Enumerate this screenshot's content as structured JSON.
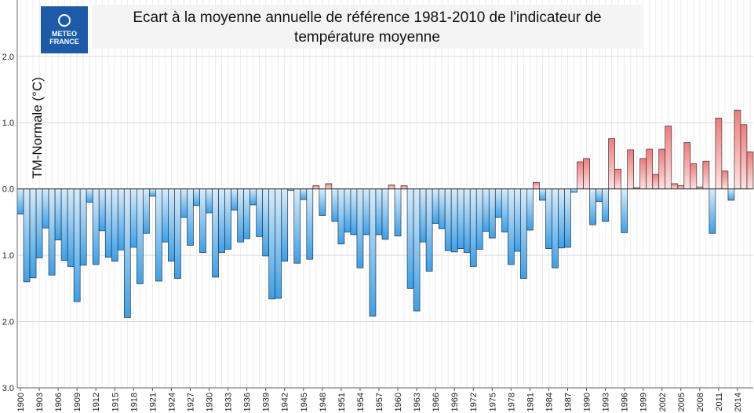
{
  "chart_data": {
    "type": "bar",
    "title_lines": [
      "Ecart à la moyenne annuelle de référence 1981-2010 de l'indicateur de",
      "température moyenne"
    ],
    "logo": [
      "METEO",
      "FRANCE"
    ],
    "ylabel": "TM-Normale (°C)",
    "x": [
      1900,
      1901,
      1902,
      1903,
      1904,
      1905,
      1906,
      1907,
      1908,
      1909,
      1910,
      1911,
      1912,
      1913,
      1914,
      1915,
      1916,
      1917,
      1918,
      1919,
      1920,
      1921,
      1922,
      1923,
      1924,
      1925,
      1926,
      1927,
      1928,
      1929,
      1930,
      1931,
      1932,
      1933,
      1934,
      1935,
      1936,
      1937,
      1938,
      1939,
      1940,
      1941,
      1942,
      1943,
      1944,
      1945,
      1946,
      1947,
      1948,
      1949,
      1950,
      1951,
      1952,
      1953,
      1954,
      1955,
      1956,
      1957,
      1958,
      1959,
      1960,
      1961,
      1962,
      1963,
      1964,
      1965,
      1966,
      1967,
      1968,
      1969,
      1970,
      1971,
      1972,
      1973,
      1974,
      1975,
      1976,
      1977,
      1978,
      1979,
      1980,
      1981,
      1982,
      1983,
      1984,
      1985,
      1986,
      1987,
      1988,
      1989,
      1990,
      1991,
      1992,
      1993,
      1994,
      1995,
      1996,
      1997,
      1998,
      1999,
      2000,
      2001,
      2002,
      2003,
      2004,
      2005,
      2006,
      2007,
      2008,
      2009,
      2010,
      2011,
      2012,
      2013,
      2014,
      2015,
      2016
    ],
    "values": [
      -0.38,
      -1.4,
      -1.34,
      -1.04,
      -0.59,
      -1.3,
      -0.77,
      -1.08,
      -1.17,
      -1.7,
      -1.15,
      -0.2,
      -1.14,
      -0.63,
      -1.03,
      -1.09,
      -0.92,
      -1.94,
      -0.88,
      -1.43,
      -0.67,
      -0.11,
      -1.39,
      -0.8,
      -1.09,
      -1.35,
      -0.43,
      -0.85,
      -0.25,
      -0.96,
      -0.36,
      -1.33,
      -0.96,
      -0.91,
      -0.32,
      -0.8,
      -0.75,
      -0.24,
      -0.72,
      -1.01,
      -1.66,
      -1.65,
      -1.09,
      -0.02,
      -1.12,
      -0.16,
      -1.06,
      0.05,
      -0.4,
      0.08,
      -0.49,
      -0.83,
      -0.65,
      -0.69,
      -1.19,
      -0.69,
      -1.92,
      -0.69,
      -0.76,
      0.06,
      -0.71,
      0.05,
      -1.5,
      -1.84,
      -0.8,
      -1.24,
      -0.52,
      -0.6,
      -0.93,
      -0.95,
      -0.9,
      -0.96,
      -1.17,
      -0.91,
      -0.64,
      -0.74,
      -0.43,
      -0.65,
      -1.14,
      -0.94,
      -1.35,
      -0.62,
      0.1,
      -0.17,
      -0.9,
      -1.19,
      -0.89,
      -0.88,
      -0.05,
      0.41,
      0.46,
      -0.54,
      -0.19,
      -0.49,
      0.76,
      0.3,
      -0.66,
      0.59,
      0.02,
      0.46,
      0.6,
      0.22,
      0.6,
      0.95,
      0.08,
      0.05,
      0.7,
      0.38,
      0.03,
      0.42,
      -0.67,
      1.07,
      0.27,
      -0.17,
      1.19,
      0.97,
      0.56
    ],
    "positive_color": [
      "#fde2e2",
      "#ef7b7b"
    ],
    "negative_color": [
      "#d6ecfb",
      "#3aa0ea"
    ],
    "xlim": [
      1899.5,
      2016.5
    ],
    "xticks": [
      1900,
      1903,
      1906,
      1909,
      1912,
      1915,
      1918,
      1921,
      1924,
      1927,
      1930,
      1933,
      1936,
      1939,
      1942,
      1945,
      1948,
      1951,
      1954,
      1957,
      1960,
      1963,
      1966,
      1969,
      1972,
      1975,
      1978,
      1981,
      1984,
      1987,
      1990,
      1993,
      1996,
      1999,
      2002,
      2005,
      2008,
      2011,
      2014
    ],
    "ylim": [
      -3,
      2.85
    ],
    "yticks": [
      {
        "value": -3,
        "label": "3.0"
      },
      {
        "value": -2,
        "label": "2.0"
      },
      {
        "value": -1,
        "label": "1.0"
      },
      {
        "value": 0,
        "label": "0.0"
      },
      {
        "value": 1,
        "label": "1.0"
      },
      {
        "value": 2,
        "label": "2.0"
      }
    ],
    "grid": true
  }
}
